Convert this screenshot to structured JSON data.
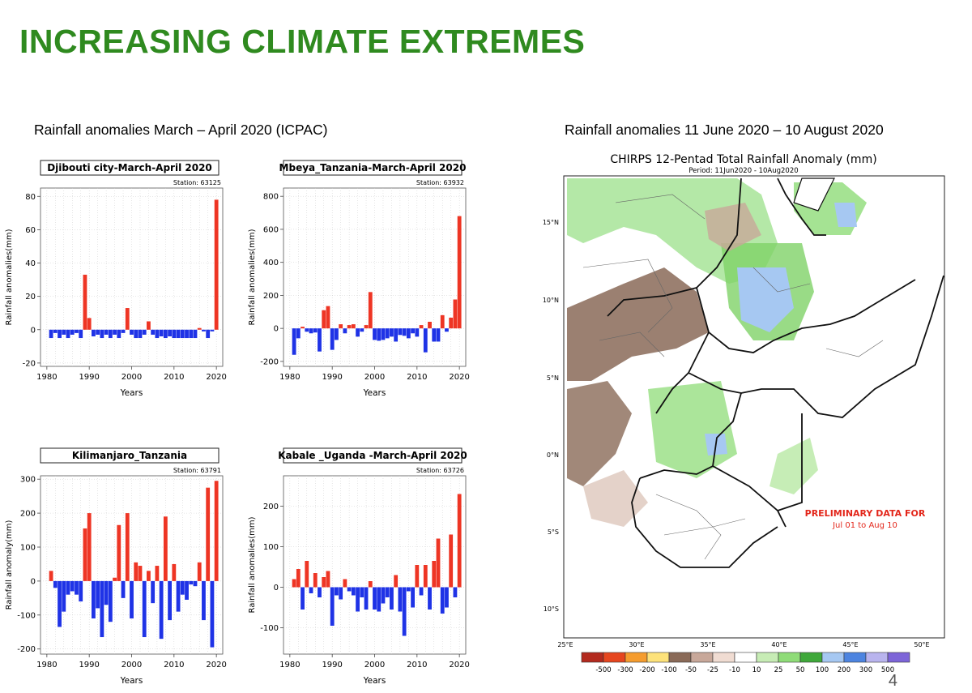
{
  "slide": {
    "title": "INCREASING CLIMATE EXTREMES",
    "left_section_title": "Rainfall anomalies March – April 2020 (ICPAC)",
    "right_section_title": "Rainfall anomalies 11 June 2020 – 10 August 2020",
    "slide_number": "4"
  },
  "colors": {
    "title_green": "#2f8a1f",
    "positive_bar": "#ee3524",
    "negative_bar": "#1f33e6"
  },
  "chart_data": [
    {
      "type": "bar",
      "title": "Djibouti city-March-April 2020",
      "station": "Station: 63125",
      "xlabel": "Years",
      "ylabel": "Rainfall anomalies(mm)",
      "ylim": [
        -22,
        85
      ],
      "yticks": [
        -20,
        0,
        20,
        40,
        60,
        80
      ],
      "xticks": [
        1980,
        1990,
        2000,
        2010,
        2020
      ],
      "x": [
        1981,
        1982,
        1983,
        1984,
        1985,
        1986,
        1987,
        1988,
        1989,
        1990,
        1991,
        1992,
        1993,
        1994,
        1995,
        1996,
        1997,
        1998,
        1999,
        2000,
        2001,
        2002,
        2003,
        2004,
        2005,
        2006,
        2007,
        2008,
        2009,
        2010,
        2011,
        2012,
        2013,
        2014,
        2015,
        2016,
        2017,
        2018,
        2019,
        2020
      ],
      "values": [
        -5,
        -2,
        -5,
        -3,
        -5,
        -3,
        -2,
        -5,
        33,
        7,
        -4,
        -3,
        -5,
        -3,
        -5,
        -3,
        -5,
        -2,
        13,
        -3,
        -5,
        -5,
        -3,
        5,
        -3,
        -5,
        -4,
        -5,
        -4,
        -5,
        -5,
        -5,
        -5,
        -5,
        -5,
        1,
        -1,
        -5,
        -1,
        78
      ]
    },
    {
      "type": "bar",
      "title": "Mbeya_Tanzania-March-April 2020",
      "station": "Station: 63932",
      "xlabel": "Years",
      "ylabel": "Rainfall anomalies(mm)",
      "ylim": [
        -230,
        850
      ],
      "yticks": [
        -200,
        0,
        200,
        400,
        600,
        800
      ],
      "xticks": [
        1980,
        1990,
        2000,
        2010,
        2020
      ],
      "x": [
        1981,
        1982,
        1983,
        1984,
        1985,
        1986,
        1987,
        1988,
        1989,
        1990,
        1991,
        1992,
        1993,
        1994,
        1995,
        1996,
        1997,
        1998,
        1999,
        2000,
        2001,
        2002,
        2003,
        2004,
        2005,
        2006,
        2007,
        2008,
        2009,
        2010,
        2011,
        2012,
        2013,
        2014,
        2015,
        2016,
        2017,
        2018,
        2019,
        2020
      ],
      "values": [
        -160,
        -60,
        10,
        -20,
        -30,
        -25,
        -140,
        110,
        135,
        -130,
        -70,
        25,
        -30,
        20,
        25,
        -50,
        -20,
        20,
        220,
        -70,
        -75,
        -70,
        -60,
        -50,
        -80,
        -40,
        -45,
        -60,
        -30,
        -50,
        20,
        -145,
        40,
        -80,
        -80,
        80,
        -20,
        65,
        175,
        680
      ]
    },
    {
      "type": "bar",
      "title": "Kilimanjaro_Tanzania",
      "station": "Station: 63791",
      "xlabel": "Years",
      "ylabel": "Rainfall anomaly(mm)",
      "ylim": [
        -215,
        310
      ],
      "yticks": [
        -200,
        -100,
        0,
        100,
        200,
        300
      ],
      "xticks": [
        1980,
        1990,
        2000,
        2010,
        2020
      ],
      "x": [
        1981,
        1982,
        1983,
        1984,
        1985,
        1986,
        1987,
        1988,
        1989,
        1990,
        1991,
        1992,
        1993,
        1994,
        1995,
        1996,
        1997,
        1998,
        1999,
        2000,
        2001,
        2002,
        2003,
        2004,
        2005,
        2006,
        2007,
        2008,
        2009,
        2010,
        2011,
        2012,
        2013,
        2014,
        2015,
        2016,
        2017,
        2018,
        2019,
        2020
      ],
      "values": [
        30,
        -20,
        -135,
        -90,
        -40,
        -30,
        -40,
        -60,
        155,
        200,
        -110,
        -80,
        -165,
        -70,
        -120,
        10,
        165,
        -50,
        200,
        -110,
        55,
        45,
        -165,
        30,
        -65,
        45,
        -170,
        190,
        -115,
        50,
        -90,
        -40,
        -55,
        -10,
        -15,
        55,
        -115,
        275,
        -195,
        295
      ]
    },
    {
      "type": "bar",
      "title": "Kabale _Uganda -March-April 2020",
      "station": "Station: 63726",
      "xlabel": "Years",
      "ylabel": "Rainfall anomalies(mm)",
      "ylim": [
        -165,
        275
      ],
      "yticks": [
        -100,
        0,
        100,
        200
      ],
      "xticks": [
        1980,
        1990,
        2000,
        2010,
        2020
      ],
      "x": [
        1981,
        1982,
        1983,
        1984,
        1985,
        1986,
        1987,
        1988,
        1989,
        1990,
        1991,
        1992,
        1993,
        1994,
        1995,
        1996,
        1997,
        1998,
        1999,
        2000,
        2001,
        2002,
        2003,
        2004,
        2005,
        2006,
        2007,
        2008,
        2009,
        2010,
        2011,
        2012,
        2013,
        2014,
        2015,
        2016,
        2017,
        2018,
        2019,
        2020
      ],
      "values": [
        20,
        45,
        -55,
        65,
        -15,
        35,
        -25,
        25,
        40,
        -95,
        -20,
        -30,
        20,
        -10,
        -20,
        -60,
        -25,
        -55,
        15,
        -55,
        -60,
        -40,
        -25,
        -55,
        30,
        -60,
        -120,
        -10,
        -50,
        55,
        -20,
        55,
        -55,
        65,
        120,
        -65,
        -50,
        130,
        -25,
        230
      ]
    }
  ],
  "map": {
    "title": "CHIRPS 12-Pentad Total Rainfall Anomaly (mm)",
    "period": "Period: 11Jun2020 - 10Aug2020",
    "annotation_line1": "PRELIMINARY DATA FOR",
    "annotation_line2": "Jul 01 to Aug 10",
    "lat_labels": [
      "15°N",
      "10°N",
      "5°N",
      "0°N",
      "5°S",
      "10°S"
    ],
    "lon_labels": [
      "25°E",
      "30°E",
      "35°E",
      "40°E",
      "45°E",
      "50°E"
    ],
    "legend_labels": [
      "-500",
      "-300",
      "-200",
      "-100",
      "-50",
      "-25",
      "-10",
      "10",
      "25",
      "50",
      "100",
      "200",
      "300",
      "500"
    ],
    "legend_colors": [
      "#b32a1e",
      "#e6461f",
      "#f59c2e",
      "#fde27a",
      "#8a6a58",
      "#c8a89a",
      "#f0dcd2",
      "#ffffff",
      "#c7ecb5",
      "#8fdc78",
      "#3fa83a",
      "#a6c8f2",
      "#4d84e0",
      "#b9b4ee",
      "#7d65d8"
    ]
  }
}
